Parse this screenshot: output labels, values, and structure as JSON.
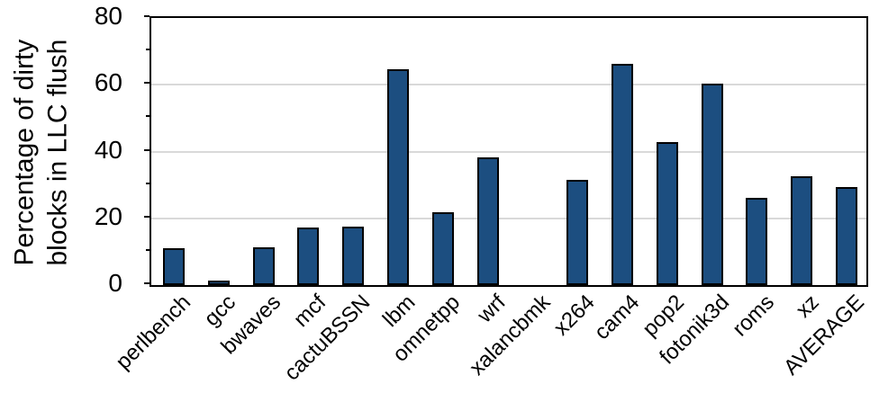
{
  "chart_data": {
    "type": "bar",
    "title": "",
    "ylabel_line1": "Percentage of dirty",
    "ylabel_line2": "blocks in LLC flush",
    "xlabel": "",
    "categories": [
      "perlbench",
      "gcc",
      "bwaves",
      "mcf",
      "cactuBSSN",
      "lbm",
      "omnetpp",
      "wrf",
      "xalancbmk",
      "x264",
      "cam4",
      "pop2",
      "fotonik3d",
      "roms",
      "xz",
      "AVERAGE"
    ],
    "values": [
      10.4,
      0.7,
      10.7,
      16.6,
      17.1,
      64.2,
      21.2,
      37.7,
      0,
      30.9,
      65.7,
      42.3,
      59.8,
      25.7,
      32.1,
      28.9
    ],
    "ylim": [
      0,
      80
    ],
    "yticks": [
      0,
      20,
      40,
      60,
      80
    ],
    "minor_yticks": [
      10,
      30,
      50,
      70
    ],
    "grid": "horizontal-major",
    "legend": "none",
    "colors": {
      "bar_fill": "#1C4E80",
      "bar_border": "#000000",
      "gridline": "#D9D9D9",
      "axis": "#000000",
      "text": "#000000"
    }
  }
}
